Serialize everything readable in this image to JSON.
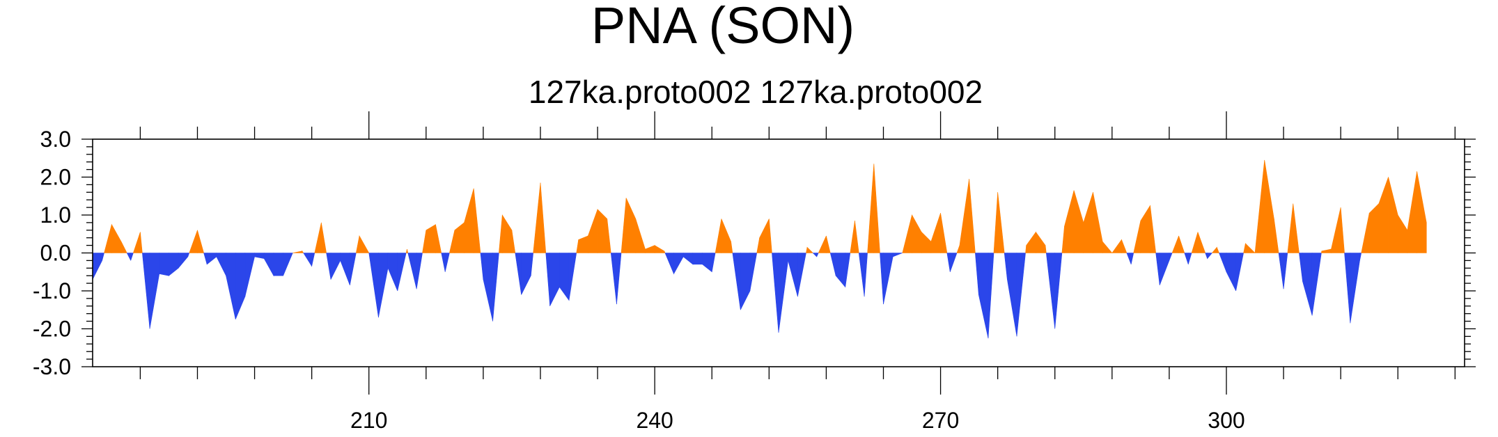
{
  "chart_data": {
    "type": "area",
    "title": "PNA (SON)",
    "subtitle": "127ka.proto002  127ka.proto002",
    "xlabel": "",
    "ylabel": "",
    "xlim": [
      181,
      325
    ],
    "ylim": [
      -3.0,
      3.0
    ],
    "xticks": [
      210,
      240,
      270,
      300
    ],
    "yticks": [
      "-3.0",
      "-2.0",
      "-1.0",
      "0.0",
      "1.0",
      "2.0",
      "3.0"
    ],
    "grid": false,
    "legend": "none",
    "x_start": 181,
    "values": [
      -0.7,
      -0.2,
      0.75,
      0.3,
      -0.2,
      0.55,
      -2.0,
      -0.55,
      -0.6,
      -0.4,
      -0.1,
      0.6,
      -0.3,
      -0.1,
      -0.6,
      -1.75,
      -1.15,
      -0.1,
      -0.15,
      -0.6,
      -0.6,
      0.0,
      0.05,
      -0.35,
      0.8,
      -0.7,
      -0.2,
      -0.85,
      0.45,
      0.0,
      -1.7,
      -0.4,
      -1.0,
      0.1,
      -0.95,
      0.6,
      0.75,
      -0.5,
      0.6,
      0.8,
      1.7,
      -0.7,
      -1.8,
      1.0,
      0.6,
      -1.1,
      -0.6,
      1.85,
      -1.4,
      -0.9,
      -1.25,
      0.35,
      0.45,
      1.15,
      0.9,
      -1.35,
      1.45,
      0.9,
      0.1,
      0.2,
      0.05,
      -0.55,
      -0.1,
      -0.3,
      -0.3,
      -0.5,
      0.9,
      0.3,
      -1.5,
      -1.0,
      0.4,
      0.9,
      -2.1,
      -0.2,
      -1.15,
      0.15,
      -0.1,
      0.45,
      -0.6,
      -0.9,
      0.85,
      -1.15,
      2.35,
      -1.35,
      -0.1,
      0.0,
      1.0,
      0.55,
      0.3,
      1.05,
      -0.5,
      0.2,
      1.95,
      -1.1,
      -2.25,
      1.6,
      -0.7,
      -2.2,
      0.2,
      0.55,
      0.2,
      -2.0,
      0.7,
      1.65,
      0.8,
      1.6,
      0.3,
      0.0,
      0.35,
      -0.3,
      0.85,
      1.25,
      -0.85,
      -0.2,
      0.45,
      -0.3,
      0.55,
      -0.15,
      0.15,
      -0.5,
      -1.0,
      0.25,
      0.0,
      2.45,
      0.9,
      -0.95,
      1.3,
      -0.75,
      -1.65,
      0.05,
      0.1,
      1.2,
      -1.85,
      -0.2,
      1.05,
      1.3,
      2.0,
      1.0,
      0.6,
      2.15,
      0.8
    ],
    "colors": {
      "positive": "#ff8000",
      "negative": "#2b46ea",
      "frame": "#000000"
    }
  }
}
